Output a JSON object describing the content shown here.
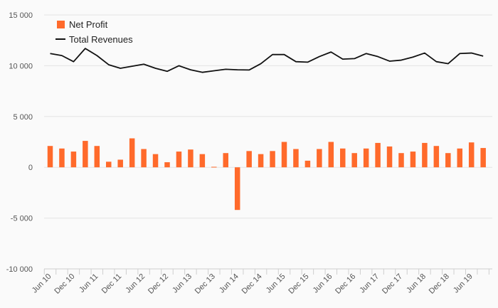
{
  "chart_data": {
    "type": "bar+line",
    "title": "",
    "xlabel": "",
    "ylabel": "",
    "ylim": [
      -10000,
      15000
    ],
    "yticks": [
      15000,
      10000,
      5000,
      0,
      -5000,
      -10000
    ],
    "ytick_labels": [
      "15 000",
      "10 000",
      "5 000",
      "0",
      "-5 000",
      "-10 000"
    ],
    "grid": true,
    "legend_position": "top-left",
    "x_tick_labels": [
      "Jun 10",
      "Dec 10",
      "Jun 11",
      "Dec 11",
      "Jun 12",
      "Dec 12",
      "Jun 13",
      "Dec 13",
      "Jun 14",
      "Dec 14",
      "Jun 15",
      "Dec 15",
      "Jun 16",
      "Dec 16",
      "Jun 17",
      "Dec 17",
      "Jun 18",
      "Dec 18",
      "Jun 19"
    ],
    "series": [
      {
        "name": "Net Profit",
        "type": "bar",
        "color": "#ff6a2b",
        "values": [
          2100,
          1850,
          1550,
          2600,
          2100,
          550,
          750,
          2850,
          1800,
          1300,
          500,
          1550,
          1750,
          1300,
          50,
          1400,
          -4200,
          1600,
          1300,
          1600,
          2500,
          1800,
          650,
          1800,
          2500,
          1850,
          1400,
          1850,
          2400,
          2050,
          1400,
          1550,
          2400,
          2100,
          1400,
          1850,
          2450,
          1900
        ]
      },
      {
        "name": "Total Revenues",
        "type": "line",
        "color": "#111111",
        "values": [
          11200,
          11000,
          10400,
          11700,
          11000,
          10100,
          9750,
          9950,
          10150,
          9750,
          9450,
          10000,
          9600,
          9350,
          9500,
          9650,
          9600,
          9580,
          10200,
          11100,
          11100,
          10400,
          10350,
          10900,
          11350,
          10650,
          10700,
          11200,
          10900,
          10450,
          10550,
          10850,
          11250,
          10400,
          10200,
          11200,
          11250,
          10950
        ]
      }
    ]
  }
}
